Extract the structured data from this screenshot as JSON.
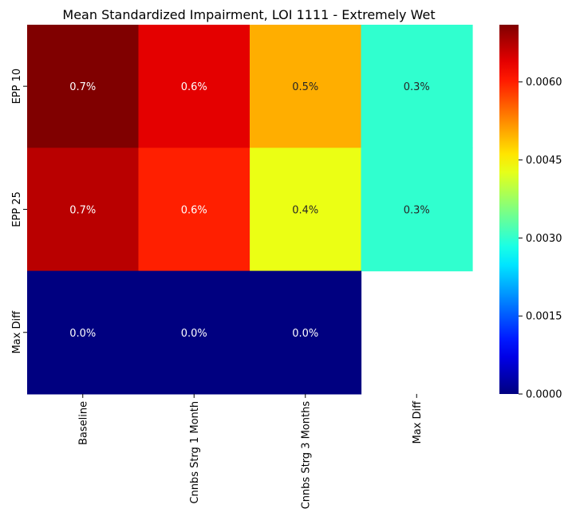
{
  "chart_data": {
    "type": "heatmap",
    "title": "Mean Standardized Impairment, LOI 1111 - Extremely Wet",
    "xlabel": "",
    "ylabel": "",
    "columns": [
      "Baseline",
      "Cnnbs Strg 1 Month",
      "Cnnbs Strg 3 Months",
      "Max Diff"
    ],
    "rows": [
      "EPP 10",
      "EPP 25",
      "Max Diff"
    ],
    "values": [
      [
        0.0071,
        0.0064,
        0.005,
        0.003
      ],
      [
        0.0067,
        0.006,
        0.0043,
        0.003
      ],
      [
        0.0,
        0.0,
        0.0,
        null
      ]
    ],
    "annotations": [
      [
        "0.7%",
        "0.6%",
        "0.5%",
        "0.3%"
      ],
      [
        "0.7%",
        "0.6%",
        "0.4%",
        "0.3%"
      ],
      [
        "0.0%",
        "0.0%",
        "0.0%",
        ""
      ]
    ],
    "colormap": "jet",
    "vmin": 0.0,
    "vmax": 0.0071,
    "colorbar_ticks": [
      0.0,
      0.0015,
      0.003,
      0.0045,
      0.006
    ],
    "colorbar_tick_labels": [
      "0.0000",
      "0.0015",
      "0.0030",
      "0.0045",
      "0.0060"
    ]
  }
}
